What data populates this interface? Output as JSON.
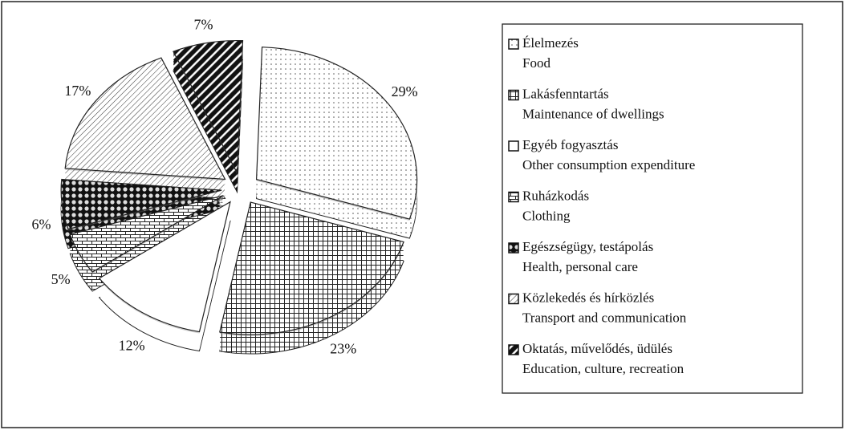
{
  "chart_data": {
    "type": "pie3d",
    "categories": [
      "Élelmezés",
      "Lakásfenntartás",
      "Egyéb fogyasztás",
      "Ruházkodás",
      "Egészségügy, testápolás",
      "Közlekedés és hírközlés",
      "Oktatás, művelődés, üdülés"
    ],
    "category_translations": [
      "Food",
      "Maintenance of dwellings",
      "Other consumption expenditure",
      "Clothing",
      "Health, personal care",
      "Transport and communication",
      "Education, culture, recreation"
    ],
    "values": [
      29,
      23,
      12,
      5,
      6,
      17,
      7
    ],
    "value_labels": [
      "29%",
      "23%",
      "12%",
      "5%",
      "6%",
      "17%",
      "7%"
    ],
    "patterns": [
      "dots",
      "grid",
      "none",
      "brick",
      "circles",
      "hatch",
      "stripes"
    ]
  }
}
